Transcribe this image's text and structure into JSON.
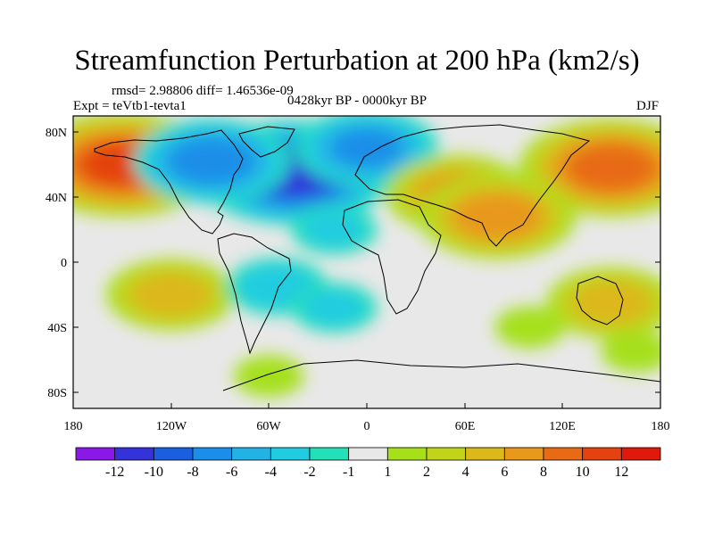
{
  "title": "Streamfunction Perturbation at 200 hPa (km2/s)",
  "stats": "rmsd= 2.98806 diff= 1.46536e-09",
  "experiment": "Expt = teVtb1-tevta1",
  "period": "0428kyr BP - 0000kyr BP",
  "season": "DJF",
  "axes": {
    "lat_ticks": [
      "80N",
      "40N",
      "0",
      "40S",
      "80S"
    ],
    "lon_ticks": [
      "180",
      "120W",
      "60W",
      "0",
      "60E",
      "120E",
      "180"
    ]
  },
  "colorbar": {
    "labels": [
      "-12",
      "-10",
      "-8",
      "-6",
      "-4",
      "-2",
      "-1",
      "1",
      "2",
      "4",
      "6",
      "8",
      "10",
      "12"
    ],
    "colors": [
      "#8a18e6",
      "#3333d9",
      "#1a5fe0",
      "#1a8ee8",
      "#22b2e6",
      "#22cce0",
      "#22e0b8",
      "#e8e8e8",
      "#a6e01a",
      "#c2d41a",
      "#dcb81a",
      "#e8981a",
      "#e86a14",
      "#e4420e",
      "#e01a0a"
    ]
  },
  "map_data": {
    "anomalies": [
      {
        "lon": -150,
        "lat": 60,
        "value": 11
      },
      {
        "lon": 150,
        "lat": 58,
        "value": 10
      },
      {
        "lon": -45,
        "lat": 55,
        "value": -11
      },
      {
        "lon": -95,
        "lat": 62,
        "value": -8
      },
      {
        "lon": 0,
        "lat": 70,
        "value": -7
      },
      {
        "lon": 55,
        "lat": 42,
        "value": 7
      },
      {
        "lon": 80,
        "lat": 28,
        "value": 8
      },
      {
        "lon": -120,
        "lat": -20,
        "value": 6
      },
      {
        "lon": 150,
        "lat": -25,
        "value": 6
      },
      {
        "lon": -55,
        "lat": -15,
        "value": -4
      },
      {
        "lon": -20,
        "lat": -28,
        "value": -3
      },
      {
        "lon": -20,
        "lat": 20,
        "value": -3
      },
      {
        "lon": 165,
        "lat": -55,
        "value": 2
      },
      {
        "lon": 100,
        "lat": -40,
        "value": 2
      },
      {
        "lon": -60,
        "lat": -70,
        "value": 2
      }
    ]
  }
}
